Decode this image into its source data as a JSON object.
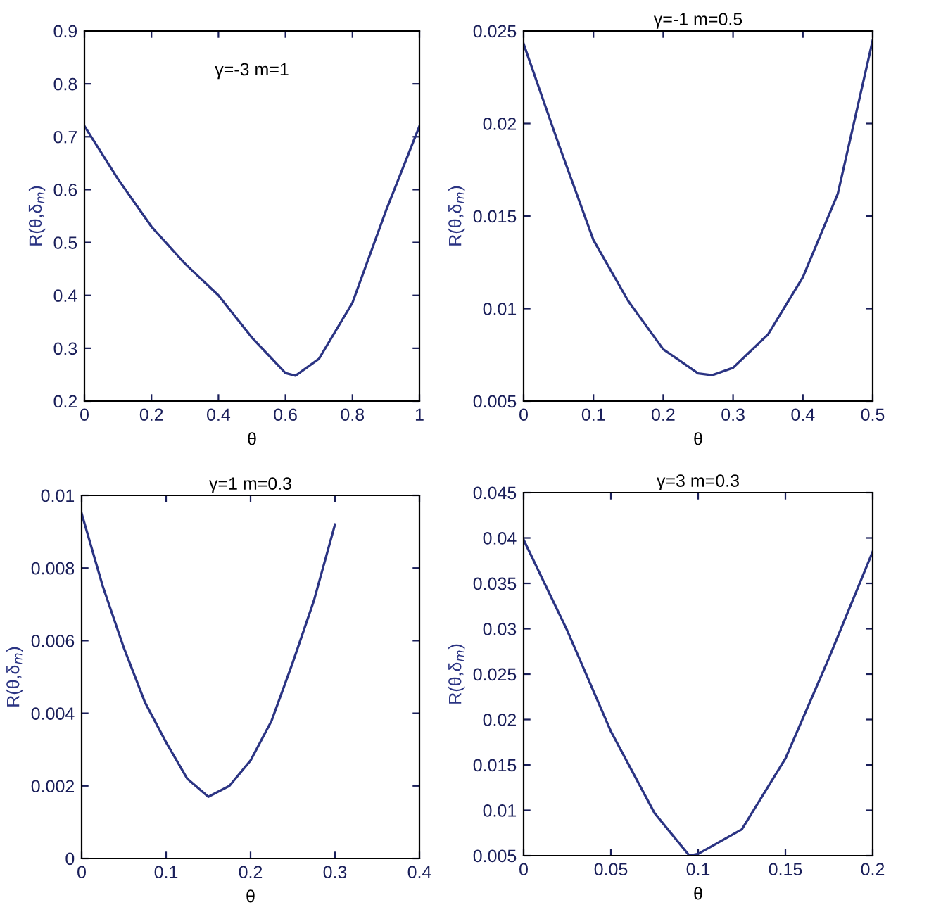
{
  "chart_data": [
    {
      "type": "line",
      "annotations": [
        "γ=-3 m=1"
      ],
      "xlabel": "θ",
      "ylabel": "R(θ,δ$_{m}$)",
      "xlim": [
        0,
        1
      ],
      "ylim": [
        0.2,
        0.9
      ],
      "xticks": [
        0,
        0.2,
        0.4,
        0.6,
        0.8,
        1
      ],
      "yticks": [
        0.2,
        0.3,
        0.4,
        0.5,
        0.6,
        0.7,
        0.8,
        0.9
      ],
      "grid": false,
      "marker": "none",
      "line_style": "solid",
      "series": [
        {
          "color": "#2b3483",
          "x": [
            0,
            0.1,
            0.2,
            0.3,
            0.4,
            0.5,
            0.6,
            0.63,
            0.7,
            0.8,
            0.9,
            0.95,
            1
          ],
          "values": [
            0.72,
            0.62,
            0.53,
            0.46,
            0.4,
            0.32,
            0.253,
            0.248,
            0.28,
            0.386,
            0.56,
            0.64,
            0.72
          ]
        }
      ]
    },
    {
      "type": "line",
      "title": "γ=-1 m=0.5",
      "xlabel": "θ",
      "ylabel": "R(θ,δ$_{m}$)",
      "xlim": [
        0,
        0.5
      ],
      "ylim": [
        0.005,
        0.025
      ],
      "xticks": [
        0,
        0.1,
        0.2,
        0.3,
        0.4,
        0.5
      ],
      "yticks": [
        0.005,
        0.01,
        0.015,
        0.02,
        0.025
      ],
      "grid": false,
      "marker": "none",
      "line_style": "solid",
      "series": [
        {
          "color": "#2b3483",
          "x": [
            0,
            0.05,
            0.1,
            0.15,
            0.2,
            0.25,
            0.27,
            0.3,
            0.35,
            0.4,
            0.45,
            0.5
          ],
          "values": [
            0.0243,
            0.0189,
            0.0137,
            0.0104,
            0.0078,
            0.0065,
            0.0064,
            0.0068,
            0.0086,
            0.0117,
            0.0162,
            0.0245
          ]
        }
      ]
    },
    {
      "type": "line",
      "title": "γ=1 m=0.3",
      "xlabel": "θ",
      "ylabel": "R(θ,δ$_{m}$)",
      "xlim": [
        0,
        0.4
      ],
      "ylim": [
        0,
        0.01
      ],
      "xticks": [
        0,
        0.1,
        0.2,
        0.3,
        0.4
      ],
      "yticks": [
        0,
        0.002,
        0.004,
        0.006,
        0.008,
        0.01
      ],
      "grid": false,
      "marker": "none",
      "line_style": "solid",
      "series": [
        {
          "color": "#2b3483",
          "x": [
            0,
            0.025,
            0.05,
            0.075,
            0.1,
            0.125,
            0.15,
            0.175,
            0.2,
            0.225,
            0.25,
            0.275,
            0.3
          ],
          "values": [
            0.0095,
            0.0075,
            0.0058,
            0.0043,
            0.0032,
            0.0022,
            0.0017,
            0.002,
            0.0027,
            0.0038,
            0.0054,
            0.0071,
            0.0092
          ]
        }
      ]
    },
    {
      "type": "line",
      "title": "γ=3 m=0.3",
      "xlabel": "θ",
      "ylabel": "R(θ,δ$_{m}$)",
      "xlim": [
        0,
        0.2
      ],
      "ylim": [
        0.005,
        0.045
      ],
      "xticks": [
        0,
        0.05,
        0.1,
        0.15,
        0.2
      ],
      "yticks": [
        0.005,
        0.01,
        0.015,
        0.02,
        0.025,
        0.03,
        0.035,
        0.04,
        0.045
      ],
      "grid": false,
      "marker": "none",
      "line_style": "solid",
      "series": [
        {
          "color": "#2b3483",
          "x": [
            0,
            0.025,
            0.05,
            0.075,
            0.095,
            0.1,
            0.125,
            0.15,
            0.175,
            0.2
          ],
          "values": [
            0.0398,
            0.0298,
            0.0187,
            0.0097,
            0.005,
            0.0052,
            0.0079,
            0.0157,
            0.0268,
            0.0385
          ]
        }
      ]
    }
  ]
}
